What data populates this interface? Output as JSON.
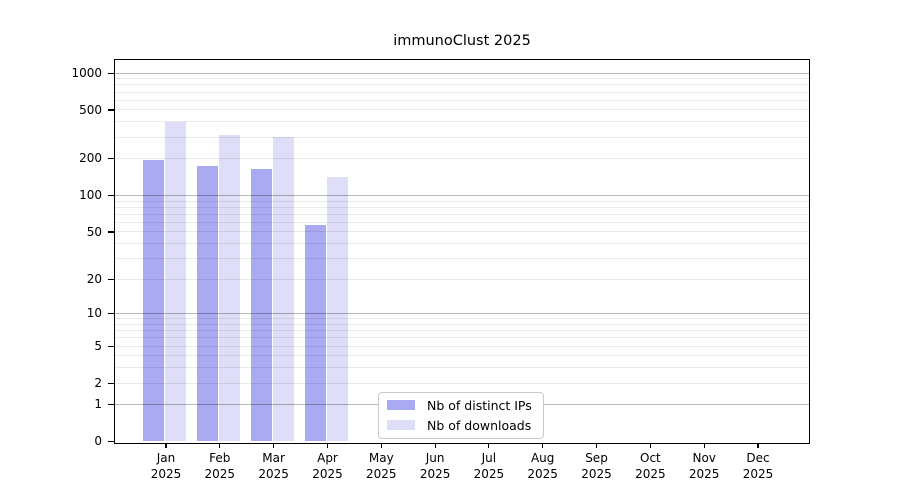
{
  "chart_data": {
    "type": "bar",
    "title": "immunoClust 2025",
    "categories": [
      "Jan",
      "Feb",
      "Mar",
      "Apr",
      "May",
      "Jun",
      "Jul",
      "Aug",
      "Sep",
      "Oct",
      "Nov",
      "Dec"
    ],
    "x_year_label": "2025",
    "series": [
      {
        "name": "Nb of distinct IPs",
        "color": "#aaaaf2",
        "values": [
          192,
          174,
          163,
          57,
          null,
          null,
          null,
          null,
          null,
          null,
          null,
          null
        ]
      },
      {
        "name": "Nb of downloads",
        "color": "#dedef8",
        "values": [
          395,
          310,
          298,
          141,
          null,
          null,
          null,
          null,
          null,
          null,
          null,
          null
        ]
      }
    ],
    "yscale": "log10(value+1)",
    "yticks": [
      0,
      1,
      2,
      5,
      10,
      20,
      50,
      100,
      200,
      500,
      1000
    ],
    "ylim": [
      0,
      1300
    ],
    "grid": "horizontal major at decades, minor at 2-9 per decade",
    "legend_position": "inside bottom center-left"
  }
}
